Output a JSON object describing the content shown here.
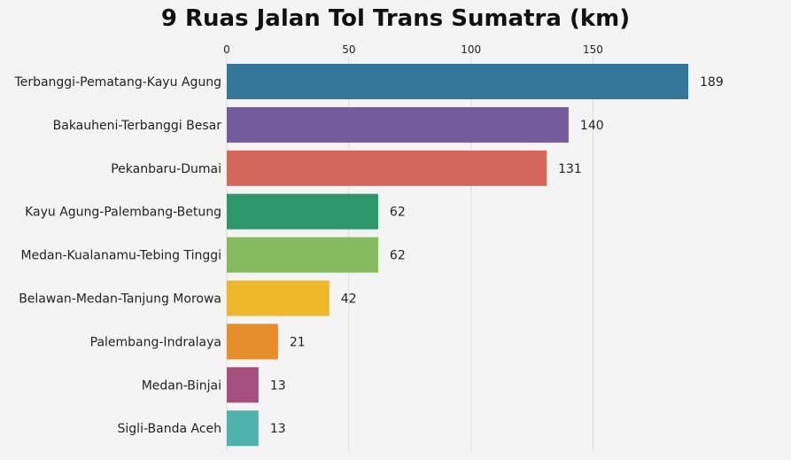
{
  "chart_data": {
    "type": "bar",
    "orientation": "horizontal",
    "title": "9 Ruas Jalan Tol Trans Sumatra (km)",
    "xlabel": "",
    "ylabel": "",
    "xlim": [
      0,
      189
    ],
    "x_ticks": [
      0,
      50,
      100,
      150
    ],
    "grid": true,
    "legend": "none",
    "categories": [
      "Terbanggi-Pematang-Kayu Agung",
      "Bakauheni-Terbanggi Besar",
      "Pekanbaru-Dumai",
      "Kayu Agung-Palembang-Betung",
      "Medan-Kualanamu-Tebing Tinggi",
      "Belawan-Medan-Tanjung Morowa",
      "Palembang-Indralaya",
      "Medan-Binjai",
      "Sigli-Banda Aceh"
    ],
    "values": [
      189,
      140,
      131,
      62,
      62,
      42,
      21,
      13,
      13
    ],
    "colors": [
      "#33769a",
      "#735c9e",
      "#d4665a",
      "#2e966b",
      "#85bb5e",
      "#eeb72c",
      "#e68d2b",
      "#a54f7f",
      "#4fb2ad"
    ]
  }
}
